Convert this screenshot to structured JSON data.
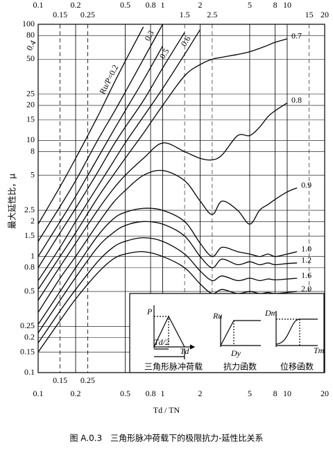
{
  "chart_data": {
    "type": "line",
    "title": "图 A.0.3　三角形脉冲荷载下的极限抗力-延性比关系",
    "x_label": "Td / TN",
    "y_label": "最大延性比，μ",
    "xscale": "log",
    "yscale": "log",
    "grid": true,
    "xlim": [
      0.1,
      20
    ],
    "ylim": [
      0.1,
      100
    ],
    "xticks": [
      0.1,
      0.2,
      0.5,
      0.8,
      1,
      2,
      5,
      8,
      10,
      20
    ],
    "xticks_inner": [
      0.15,
      0.25
    ],
    "x2ticks": [
      0.1,
      0.2,
      0.5,
      0.8,
      1,
      2,
      5,
      8,
      10
    ],
    "x2ticks_inner": [
      0.15,
      0.25,
      1.5,
      2.5,
      15,
      20
    ],
    "yticks": [
      100,
      80,
      50,
      25,
      20,
      15,
      10,
      8,
      5,
      2.5,
      2,
      1.5,
      1,
      0.8,
      0.5,
      0.25,
      0.2,
      0.15,
      0.1
    ],
    "x": [
      0.1,
      0.15,
      0.2,
      0.3,
      0.4,
      0.5,
      0.7,
      1,
      1.5,
      2,
      2.5,
      3,
      4,
      5,
      6,
      7,
      8,
      10,
      12
    ],
    "series": [
      {
        "name": "Ru/P=0.2",
        "color": "#000",
        "values": [
          1.9,
          4,
          7,
          16,
          30,
          48,
          95,
          null,
          null,
          null,
          null,
          null,
          null,
          null,
          null,
          null,
          null,
          null,
          null
        ]
      },
      {
        "name": "0.3",
        "color": "#000",
        "values": [
          1.35,
          2.7,
          4.5,
          10,
          17,
          26,
          50,
          100,
          null,
          null,
          null,
          null,
          null,
          null,
          null,
          null,
          null,
          null,
          null
        ]
      },
      {
        "name": "0.4",
        "color": "#000",
        "values": [
          1.0,
          2,
          3.3,
          7,
          12,
          18,
          33,
          65,
          null,
          null,
          null,
          null,
          null,
          null,
          null,
          null,
          null,
          null,
          null
        ]
      },
      {
        "name": "0.5",
        "color": "#000",
        "values": [
          0.8,
          1.6,
          2.6,
          5.3,
          9,
          13,
          22,
          42,
          85,
          null,
          null,
          null,
          null,
          null,
          null,
          null,
          null,
          null,
          null
        ]
      },
      {
        "name": "0.6",
        "color": "#000",
        "values": [
          0.62,
          1.2,
          2,
          4,
          6.5,
          9.5,
          16,
          28,
          55,
          90,
          null,
          null,
          null,
          null,
          null,
          null,
          null,
          null,
          null
        ]
      },
      {
        "name": "0.7",
        "color": "#000",
        "values": [
          0.52,
          1.0,
          1.6,
          3.2,
          5,
          7,
          11.5,
          20,
          36,
          45,
          50,
          52,
          55,
          58,
          62,
          66,
          70,
          75,
          null
        ]
      },
      {
        "name": "0.8",
        "color": "#000",
        "values": [
          0.42,
          0.82,
          1.3,
          2.5,
          3.8,
          5,
          7,
          9.5,
          8,
          7,
          6.8,
          7.5,
          11,
          11,
          13,
          16,
          18,
          21,
          null
        ]
      },
      {
        "name": "0.9",
        "color": "#000",
        "values": [
          0.33,
          0.65,
          1.0,
          1.9,
          2.9,
          3.7,
          5,
          5.5,
          4.5,
          3,
          2.3,
          3,
          2.5,
          1.9,
          2.5,
          2.8,
          3.1,
          3.6,
          3.9
        ]
      },
      {
        "name": "1.0",
        "color": "#000",
        "values": [
          0.26,
          0.5,
          0.8,
          1.5,
          2.1,
          2.4,
          2.6,
          2.5,
          2.0,
          1.3,
          1.0,
          1.2,
          1.1,
          1.05,
          1.0,
          1.05,
          1.0,
          1.05,
          1.1
        ]
      },
      {
        "name": "1.2",
        "color": "#000",
        "values": [
          0.22,
          0.42,
          0.66,
          1.2,
          1.6,
          1.85,
          2.0,
          1.9,
          1.5,
          1.0,
          0.8,
          0.95,
          0.85,
          0.9,
          0.85,
          0.88,
          0.85,
          0.87,
          0.88
        ]
      },
      {
        "name": "1.6",
        "color": "#000",
        "values": [
          0.18,
          0.34,
          0.52,
          0.9,
          1.2,
          1.35,
          1.45,
          1.35,
          1.05,
          0.75,
          0.62,
          0.68,
          0.62,
          0.65,
          0.62,
          0.64,
          0.63,
          0.64,
          0.65
        ]
      },
      {
        "name": "2.0",
        "color": "#000",
        "values": [
          0.15,
          0.28,
          0.43,
          0.72,
          0.95,
          1.05,
          1.1,
          1.0,
          0.8,
          0.58,
          0.48,
          0.52,
          0.48,
          0.5,
          0.48,
          0.49,
          0.48,
          0.49,
          0.5
        ]
      }
    ],
    "inset": {
      "load_axis": "P",
      "half_duration": "Td/2",
      "duration": "Td",
      "load_caption": "三角形脉冲荷载",
      "resistance_axis": "Ru",
      "yield_disp": "Dy",
      "resistance_caption": "抗力函数",
      "max_disp": "Dm",
      "max_time": "Tm",
      "disp_caption": "位移函数"
    }
  }
}
